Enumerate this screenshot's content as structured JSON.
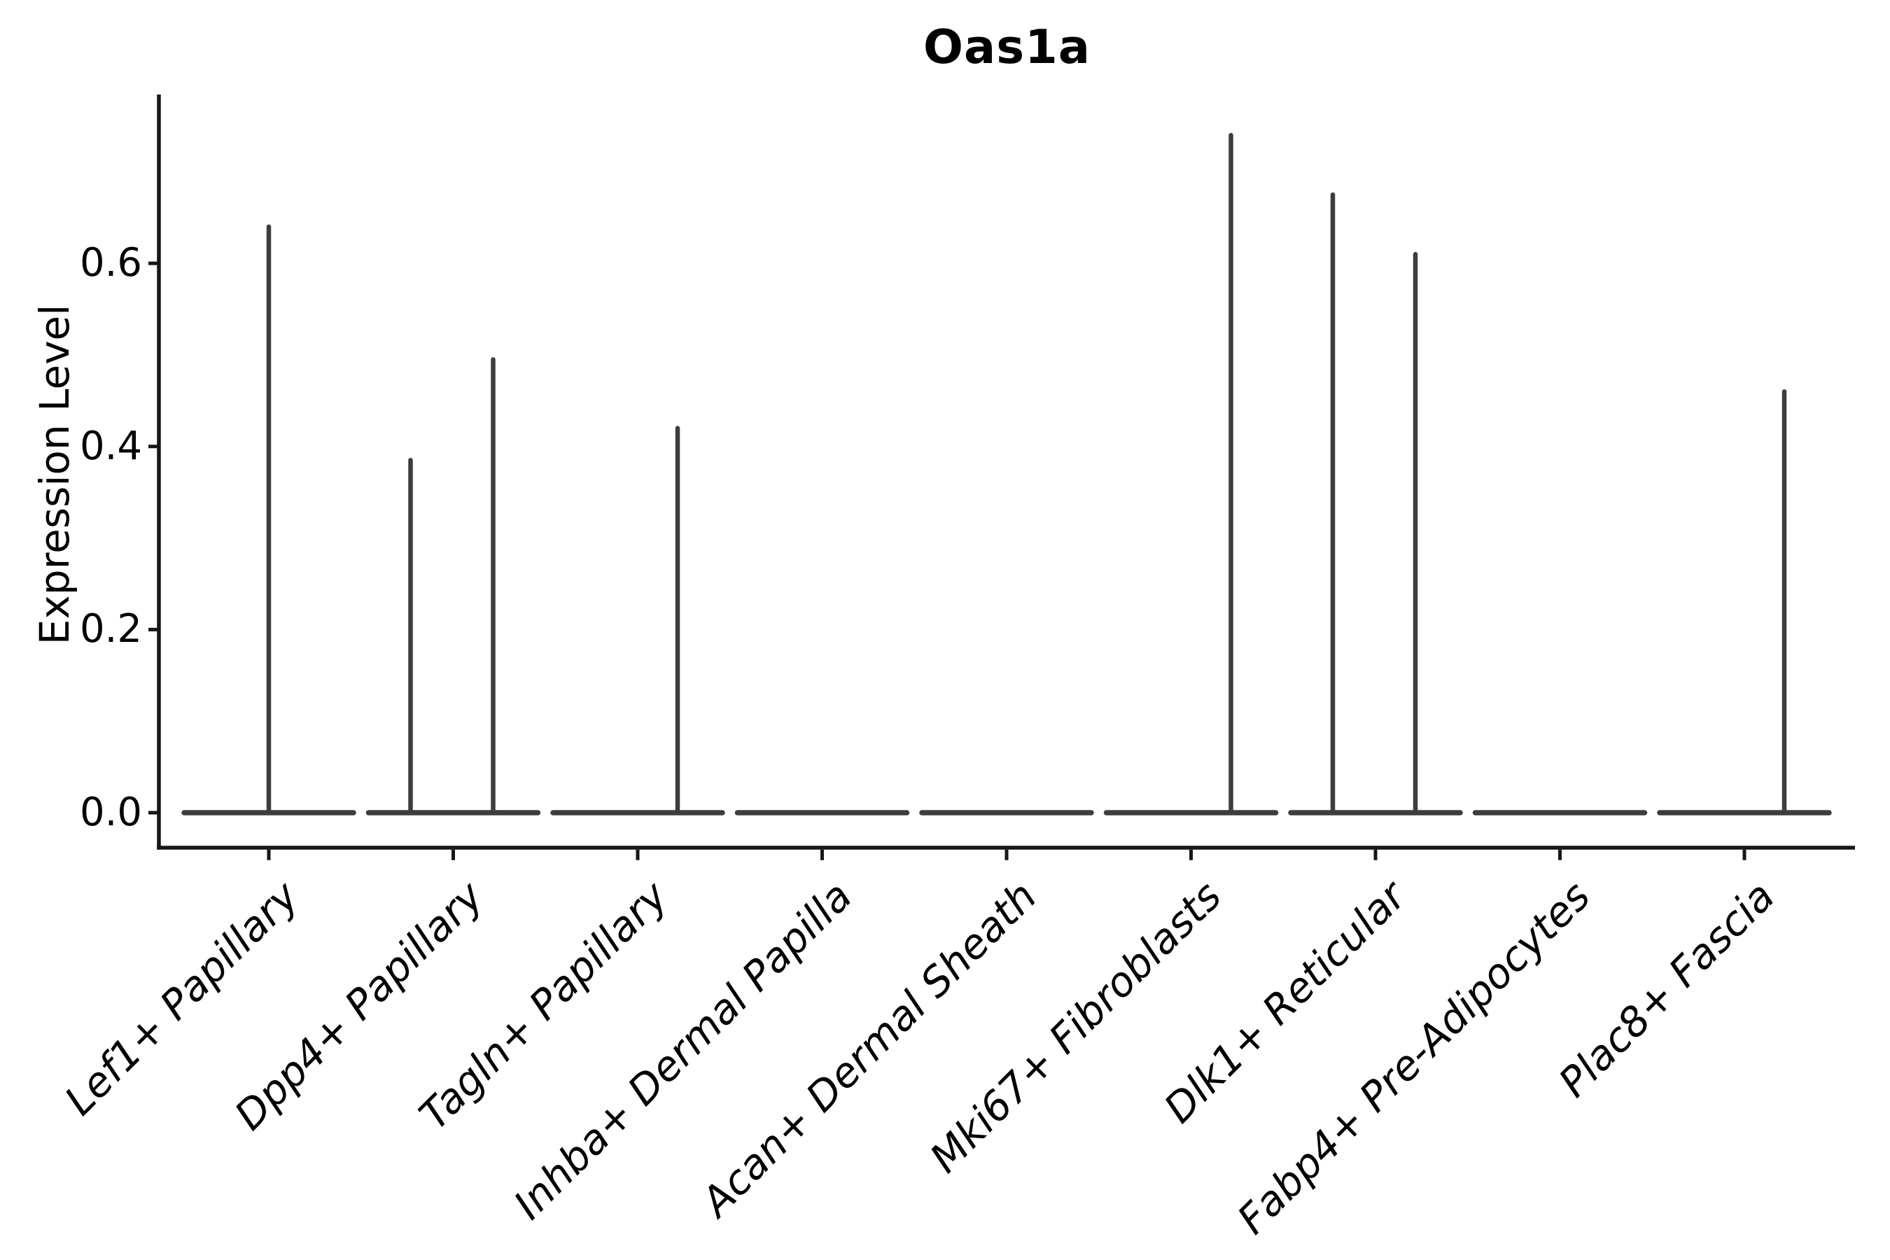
{
  "figure": {
    "title": "Oas1a",
    "y_axis": {
      "label": "Expression Level",
      "tick_labels": [
        "0.0",
        "0.2",
        "0.4",
        "0.6"
      ],
      "tick_values": [
        0.0,
        0.2,
        0.4,
        0.6
      ]
    },
    "x_axis": {
      "label": "",
      "tick_rotation_deg": 45,
      "tick_style": "italic"
    }
  },
  "chart_data": {
    "type": "violin",
    "title": "Oas1a",
    "xlabel": "",
    "ylabel": "Expression Level",
    "categories": [
      "Lef1+ Papillary",
      "Dpp4+ Papillary",
      "Tagln+ Papillary",
      "Inhba+ Dermal Papilla",
      "Acan+ Dermal Sheath",
      "Mki67+ Fibroblasts",
      "Dlk1+ Reticular",
      "Fabp4+ Pre-Adipocytes",
      "Plac8+ Fascia"
    ],
    "y_ticks": [
      0.0,
      0.2,
      0.4,
      0.6
    ],
    "ylim": [
      -0.04,
      0.785
    ],
    "grid": false,
    "legend": "none",
    "violins": [
      {
        "category": "Lef1+ Papillary",
        "baseline_value": 0.0,
        "spikes": [
          {
            "position": "center",
            "value": 0.64
          }
        ]
      },
      {
        "category": "Dpp4+ Papillary",
        "baseline_value": 0.0,
        "spikes": [
          {
            "position": "left",
            "value": 0.385
          },
          {
            "position": "right",
            "value": 0.495
          }
        ]
      },
      {
        "category": "Tagln+ Papillary",
        "baseline_value": 0.0,
        "spikes": [
          {
            "position": "right",
            "value": 0.42
          }
        ]
      },
      {
        "category": "Inhba+ Dermal Papilla",
        "baseline_value": 0.0,
        "spikes": []
      },
      {
        "category": "Acan+ Dermal Sheath",
        "baseline_value": 0.0,
        "spikes": []
      },
      {
        "category": "Mki67+ Fibroblasts",
        "baseline_value": 0.0,
        "spikes": [
          {
            "position": "right",
            "value": 0.74
          }
        ]
      },
      {
        "category": "Dlk1+ Reticular",
        "baseline_value": 0.0,
        "spikes": [
          {
            "position": "left",
            "value": 0.675
          },
          {
            "position": "right",
            "value": 0.61
          }
        ]
      },
      {
        "category": "Fabp4+ Pre-Adipocytes",
        "baseline_value": 0.0,
        "spikes": []
      },
      {
        "category": "Plac8+ Fascia",
        "baseline_value": 0.0,
        "spikes": [
          {
            "position": "right",
            "value": 0.46
          }
        ]
      }
    ]
  },
  "style": {
    "background": "#ffffff",
    "axis_color": "#161616",
    "violin_color": "#3d3d3d",
    "text_color": "#000000"
  }
}
